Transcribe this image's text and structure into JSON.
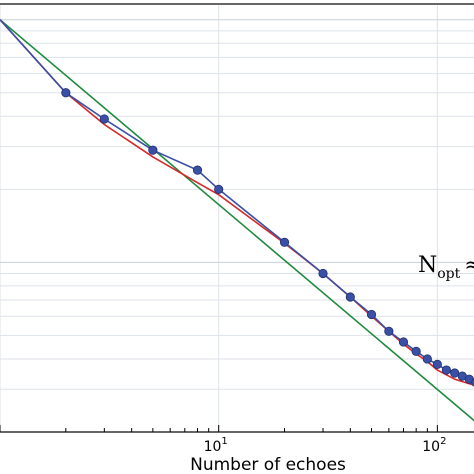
{
  "chart_data": {
    "type": "line",
    "xlabel": "Number of echoes",
    "x_scale": "log",
    "y_scale": "log",
    "xlim": [
      1,
      160
    ],
    "ylim": [
      0.02,
      1.15
    ],
    "x_ticks": [
      {
        "value": 10,
        "base": "10",
        "exp": "1"
      },
      {
        "value": 100,
        "base": "10",
        "exp": "2"
      }
    ],
    "grid": true,
    "series": [
      {
        "color": "#3a4fa6",
        "marker": "circle",
        "x": [
          1,
          2,
          3,
          5,
          8,
          10,
          20,
          30,
          40,
          50,
          60,
          70,
          80,
          90,
          100,
          110,
          120,
          130,
          140,
          150
        ],
        "y": [
          1.0,
          0.5,
          0.39,
          0.29,
          0.24,
          0.2,
          0.121,
          0.09,
          0.072,
          0.061,
          0.052,
          0.047,
          0.043,
          0.04,
          0.038,
          0.036,
          0.035,
          0.034,
          0.033,
          0.032
        ]
      },
      {
        "color": "#d42a2a",
        "marker": "none",
        "x": [
          1,
          2,
          3,
          5,
          8,
          10,
          20,
          30,
          40,
          50,
          60,
          70,
          80,
          90,
          100,
          120,
          150
        ],
        "y": [
          1.0,
          0.5,
          0.37,
          0.272,
          0.213,
          0.19,
          0.12,
          0.09,
          0.072,
          0.06,
          0.052,
          0.046,
          0.042,
          0.039,
          0.036,
          0.033,
          0.031
        ]
      },
      {
        "color": "#1e8a3e",
        "marker": "none",
        "x": [
          1,
          150
        ],
        "y": [
          1.0,
          0.022
        ]
      }
    ],
    "annotation": {
      "main": "N",
      "sub": "opt",
      "symbol": "≈"
    }
  }
}
